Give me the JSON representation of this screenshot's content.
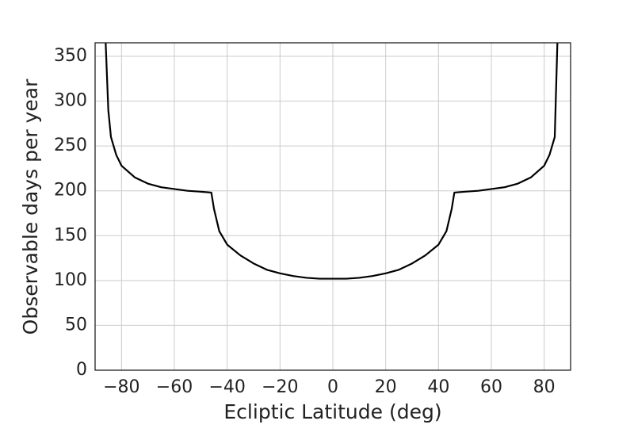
{
  "chart_data": {
    "type": "line",
    "xlabel": "Ecliptic Latitude (deg)",
    "ylabel": "Observable days per year",
    "x": [
      -86,
      -85,
      -84,
      -82,
      -80,
      -75,
      -70,
      -65,
      -60,
      -55,
      -50,
      -46,
      -45,
      -43,
      -40,
      -35,
      -30,
      -25,
      -20,
      -15,
      -10,
      -5,
      0,
      5,
      10,
      15,
      20,
      25,
      30,
      35,
      40,
      43,
      45,
      46,
      50,
      55,
      60,
      65,
      70,
      75,
      80,
      82,
      84,
      85
    ],
    "values": [
      365,
      290,
      260,
      240,
      228,
      215,
      208,
      204,
      202,
      200,
      199,
      198,
      180,
      155,
      140,
      128,
      119,
      112,
      108,
      105,
      103,
      102,
      102,
      102,
      103,
      105,
      108,
      112,
      119,
      128,
      140,
      155,
      180,
      198,
      199,
      200,
      202,
      204,
      208,
      215,
      228,
      240,
      260,
      365
    ],
    "color": "#000000",
    "xlim": [
      -90,
      90
    ],
    "ylim": [
      0,
      365
    ],
    "xticks": [
      {
        "value": -80,
        "label": "−80"
      },
      {
        "value": -60,
        "label": "−60"
      },
      {
        "value": -40,
        "label": "−40"
      },
      {
        "value": -20,
        "label": "−20"
      },
      0,
      20,
      40,
      60,
      80
    ],
    "yticks": [
      0,
      50,
      100,
      150,
      200,
      250,
      300,
      350
    ],
    "grid": true
  }
}
